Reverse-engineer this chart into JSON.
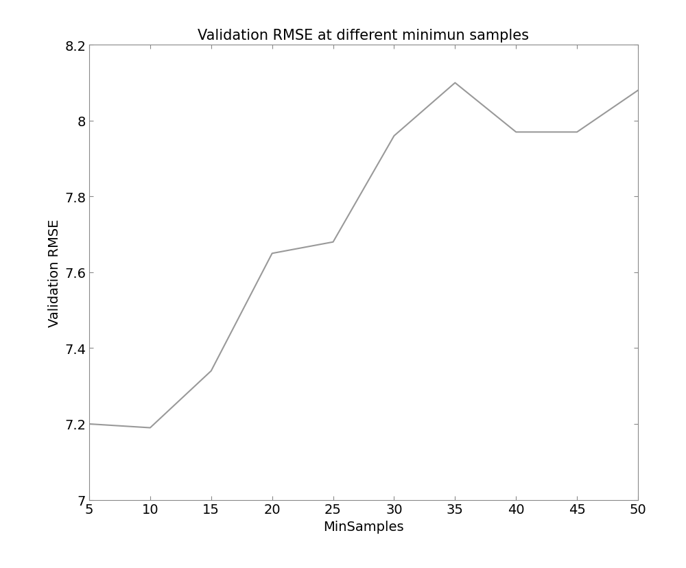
{
  "x": [
    5,
    10,
    15,
    20,
    25,
    30,
    35,
    40,
    45,
    50
  ],
  "y": [
    7.2,
    7.19,
    7.34,
    7.65,
    7.68,
    7.96,
    8.1,
    7.97,
    7.97,
    8.08
  ],
  "title": "Validation RMSE at different minimun samples",
  "xlabel": "MinSamples",
  "ylabel": "Validation RMSE",
  "xlim": [
    5,
    50
  ],
  "ylim": [
    7.0,
    8.2
  ],
  "xticks": [
    5,
    10,
    15,
    20,
    25,
    30,
    35,
    40,
    45,
    50
  ],
  "yticks": [
    7.0,
    7.2,
    7.4,
    7.6,
    7.8,
    8.0,
    8.2
  ],
  "ytick_labels": [
    "7",
    "7.2",
    "7.4",
    "7.6",
    "7.8",
    "8",
    "8.2"
  ],
  "line_color": "#999999",
  "line_width": 1.5,
  "background_color": "#ffffff",
  "title_fontsize": 15,
  "label_fontsize": 14,
  "tick_fontsize": 14
}
